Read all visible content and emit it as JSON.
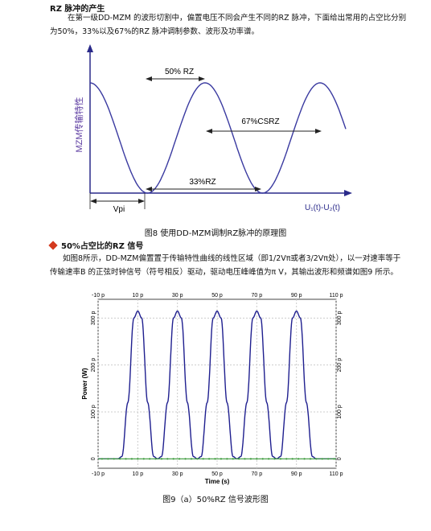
{
  "section": {
    "heading": "RZ 脉冲的产生",
    "intro": "在第一级DD-MZM 的波形切割中，偏置电压不同会产生不同的RZ 脉冲，下面给出常用的占空比分别为50%，33%以及67%的RZ 脉冲调制参数、波形及功率谱。"
  },
  "figure8": {
    "ylabel": "MZM传输特性",
    "xlabel": "U₁(t)-U₂(t)",
    "vpi_label": "Vpi",
    "label_50": "50% RZ",
    "label_67": "67%CSRZ",
    "label_33": "33%RZ",
    "caption": "图8 使用DD-MZM调制RZ脉冲的原理图"
  },
  "subsection": {
    "heading": "50%占空比的RZ 信号",
    "body": "如图8所示，DD-MZM偏置置于传输特性曲线的线性区域（即1/2Vπ或者3/2Vπ处），以一对速率等于传输速率B 的正弦时钟信号（符号相反）驱动，驱动电压峰峰值为π V，其输出波形和频谱如图9 所示。"
  },
  "chart_data": {
    "type": "line",
    "title": "",
    "xlabel": "Time (s)",
    "ylabel": "Power (W)",
    "xlim": [
      -10,
      110
    ],
    "ylim": [
      0,
      320
    ],
    "x_ticks": [
      "-10 p",
      "10 p",
      "30 p",
      "50 p",
      "70 p",
      "90 p",
      "110 p"
    ],
    "y_ticks": [
      "0",
      "100 p",
      "200 p",
      "300 p"
    ],
    "grid": true,
    "series": [
      {
        "color": "#1f1f8f",
        "x": [
          -10,
          0,
          2,
          5,
          8,
          10,
          12,
          15,
          18,
          20,
          22,
          25,
          28,
          30,
          32,
          35,
          38,
          40,
          42,
          45,
          48,
          50,
          52,
          55,
          58,
          60,
          62,
          65,
          68,
          70,
          72,
          75,
          78,
          80,
          82,
          85,
          88,
          90,
          92,
          95,
          98,
          100,
          110
        ],
        "y": [
          0,
          0,
          5,
          120,
          300,
          315,
          300,
          120,
          5,
          0,
          5,
          120,
          300,
          315,
          300,
          120,
          5,
          0,
          5,
          120,
          300,
          315,
          300,
          120,
          5,
          0,
          5,
          120,
          300,
          315,
          300,
          120,
          5,
          0,
          5,
          120,
          300,
          315,
          300,
          120,
          5,
          0,
          0
        ]
      },
      {
        "color": "#3a9a3a",
        "x": [
          -10,
          110
        ],
        "y": [
          0,
          0
        ]
      }
    ],
    "caption": "图9（a）50%RZ 信号波形图"
  }
}
